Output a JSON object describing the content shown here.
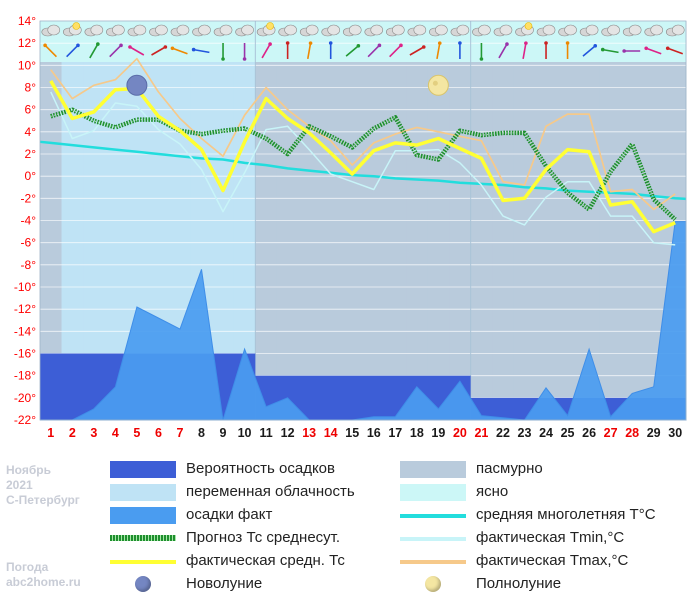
{
  "side": {
    "month": "Ноябрь",
    "year": "2021",
    "city": "С-Петербург",
    "brand1": "Погода",
    "brand2": "abc2home.ru"
  },
  "colors": {
    "overcast": "#b9cbdc",
    "variable": "#bfe3f5",
    "clear": "#ccf7f7",
    "precip_prob": "#3d5ed6",
    "precip_fact": "#4a9cf0",
    "forecast": "#1e8f2e",
    "fact_avg": "#ffff33",
    "normal": "#22dddd",
    "fact_min": "#c8f4f8",
    "fact_max": "#f6c98a"
  },
  "chart_data": {
    "type": "line",
    "x": [
      1,
      2,
      3,
      4,
      5,
      6,
      7,
      8,
      9,
      10,
      11,
      12,
      13,
      14,
      15,
      16,
      17,
      18,
      19,
      20,
      21,
      22,
      23,
      24,
      25,
      26,
      27,
      28,
      29,
      30
    ],
    "red_days": [
      1,
      2,
      3,
      4,
      5,
      6,
      7,
      13,
      14,
      20,
      21,
      27,
      28
    ],
    "ylim": [
      -22,
      14
    ],
    "yticks": [
      "14°",
      "12°",
      "10°",
      "8°",
      "6°",
      "4°",
      "2°",
      "0°",
      "-2°",
      "-4°",
      "-6°",
      "-8°",
      "-10°",
      "-12°",
      "-14°",
      "-16°",
      "-18°",
      "-20°",
      "-22°"
    ],
    "sky": [
      "overcast",
      "variable",
      "variable",
      "variable",
      "variable",
      "variable",
      "variable",
      "variable",
      "variable",
      "variable",
      "overcast",
      "overcast",
      "overcast",
      "overcast",
      "overcast",
      "overcast",
      "overcast",
      "overcast",
      "overcast",
      "overcast",
      "overcast",
      "overcast",
      "overcast",
      "overcast",
      "overcast",
      "overcast",
      "overcast",
      "overcast",
      "overcast",
      "overcast"
    ],
    "series": [
      {
        "name": "фактическая Tmax,°C",
        "key": "tmax",
        "values": [
          9.6,
          7.0,
          8.2,
          8.7,
          10.6,
          7.6,
          5.2,
          3.4,
          1.8,
          5.5,
          8.0,
          6.0,
          4.5,
          3.2,
          1.0,
          3.0,
          3.8,
          4.4,
          4.0,
          3.6,
          3.2,
          -0.5,
          -0.8,
          4.5,
          5.6,
          5.6,
          -1.4,
          -1.2,
          -3.0,
          -1.6
        ]
      },
      {
        "name": "фактическая Tmin,°C",
        "key": "tmin",
        "values": [
          7.6,
          3.4,
          4.1,
          6.6,
          6.3,
          4.2,
          2.9,
          0.6,
          -3.2,
          0.3,
          4.2,
          4.5,
          2.4,
          0.2,
          -0.5,
          -1.2,
          2.3,
          2.3,
          2.4,
          1.2,
          -0.8,
          -3.6,
          -4.4,
          -1.9,
          -0.5,
          -0.5,
          -3.6,
          -3.6,
          -6.0,
          -6.2
        ]
      },
      {
        "name": "средняя многолетняя T°С",
        "key": "norm",
        "values": [
          3.0,
          2.8,
          2.6,
          2.4,
          2.2,
          2.0,
          1.8,
          1.6,
          1.5,
          1.2,
          1.0,
          0.7,
          0.5,
          0.3,
          0.1,
          0.0,
          -0.2,
          -0.3,
          -0.4,
          -0.6,
          -0.7,
          -0.8,
          -1.0,
          -1.1,
          -1.3,
          -1.4,
          -1.5,
          -1.6,
          -1.8,
          -2.0
        ]
      },
      {
        "name": "фактическая средн. Тс",
        "key": "avg",
        "values": [
          8.6,
          5.2,
          5.8,
          7.8,
          7.9,
          5.4,
          4.1,
          2.4,
          -1.3,
          3.1,
          7.0,
          5.2,
          3.9,
          2.1,
          0.2,
          2.3,
          3.0,
          2.8,
          3.4,
          2.5,
          1.6,
          -2.2,
          -2.0,
          0.6,
          2.4,
          2.2,
          -2.6,
          -2.3,
          -5.0,
          -4.2
        ]
      },
      {
        "name": "Прогноз Тс среднесут.",
        "key": "fc",
        "values": [
          5.4,
          6.0,
          5.0,
          4.4,
          5.1,
          5.1,
          4.1,
          3.8,
          4.1,
          4.3,
          3.4,
          2.0,
          4.5,
          3.6,
          2.6,
          4.3,
          5.3,
          1.9,
          1.5,
          4.1,
          3.7,
          3.9,
          3.9,
          0.9,
          -1.5,
          -3.0,
          0.4,
          2.9,
          -2.1,
          -3.9
        ]
      },
      {
        "name": "осадки факт",
        "key": "precip",
        "values": [
          -22,
          -22,
          -21.0,
          -19.0,
          -11.8,
          -12.8,
          -13.8,
          -8.4,
          -22,
          -15.6,
          -20.8,
          -20.0,
          -22,
          -22,
          -22,
          -21.7,
          -21.7,
          -19.0,
          -21.0,
          -18.5,
          -21.6,
          -21.8,
          -22,
          -19.1,
          -21.6,
          -15.6,
          -21.7,
          -19.6,
          -19.0,
          -4.1
        ]
      }
    ],
    "precip_prob_levels": [
      {
        "from_day": 1,
        "to_day": 10,
        "value": -16
      },
      {
        "from_day": 11,
        "to_day": 20,
        "value": -18
      },
      {
        "from_day": 21,
        "to_day": 30,
        "value": -20
      }
    ],
    "moon": {
      "new_day": 5,
      "full_day": 19
    }
  },
  "legend": [
    {
      "label": "Вероятность осадков",
      "kind": "swatch",
      "color": "#3d5ed6",
      "icon": "precip-prob-swatch"
    },
    {
      "label": "пасмурно",
      "kind": "swatch",
      "color": "#b9cbdc",
      "icon": "overcast-swatch"
    },
    {
      "label": "переменная облачность",
      "kind": "swatch",
      "color": "#bfe3f5",
      "icon": "variable-cloud-swatch"
    },
    {
      "label": "ясно",
      "kind": "swatch",
      "color": "#ccf7f7",
      "icon": "clear-swatch"
    },
    {
      "label": "осадки факт",
      "kind": "swatch",
      "color": "#4a9cf0",
      "icon": "precip-fact-swatch"
    },
    {
      "label": "средняя многолетняя T°С",
      "kind": "line",
      "color": "#22dddd",
      "icon": "normal-temp-line"
    },
    {
      "label": "Прогноз Тс среднесут.",
      "kind": "dots",
      "color": "#1e8f2e",
      "icon": "forecast-line"
    },
    {
      "label": "фактическая Tmin,°C",
      "kind": "line",
      "color": "#c8f4f8",
      "icon": "tmin-line"
    },
    {
      "label": "фактическая средн. Тс",
      "kind": "line",
      "color": "#ffff33",
      "icon": "avg-line"
    },
    {
      "label": "фактическая Tmax,°C",
      "kind": "line",
      "color": "#f6c98a",
      "icon": "tmax-line"
    },
    {
      "label": "Новолуние",
      "kind": "moon-new",
      "color": "#7486c2",
      "icon": "new-moon-icon"
    },
    {
      "label": "Полнолуние",
      "kind": "moon-full",
      "color": "#f4e6a2",
      "icon": "full-moon-icon"
    }
  ]
}
